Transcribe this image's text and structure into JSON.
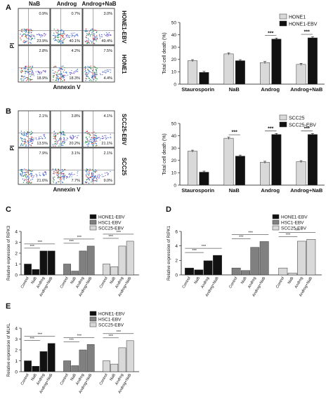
{
  "panels": [
    {
      "letter": "A",
      "flow": {
        "columns": [
          "NaB",
          "Androg",
          "Androg+NaB"
        ],
        "row_labels": [
          "HONE1-EBV",
          "HONE1"
        ],
        "xlabel": "Annexin V",
        "ylabel": "PI",
        "cells": [
          [
            {
              "ur": "0.9%",
              "lr": "23.9%"
            },
            {
              "ur": "0.7%",
              "lr": "40.1%"
            },
            {
              "ur": "3.0%",
              "lr": "49.4%"
            }
          ],
          [
            {
              "ur": "2.8%",
              "lr": "18.9%"
            },
            {
              "ur": "4.2%",
              "lr": "18.3%"
            },
            {
              "ur": "7.5%",
              "lr": "4.4%"
            }
          ]
        ]
      }
    },
    {
      "letter": "B",
      "flow": {
        "columns": [
          "",
          "",
          ""
        ],
        "row_labels": [
          "SCC25-EBV",
          "SCC25"
        ],
        "xlabel": "Annexin V",
        "ylabel": "PI",
        "cells": [
          [
            {
              "ur": "2.1%",
              "lr": "13.5%"
            },
            {
              "ur": "3.8%",
              "lr": "20.2%"
            },
            {
              "ur": "4.1%",
              "lr": "21.1%"
            }
          ],
          [
            {
              "ur": "7.9%",
              "lr": "21.6%"
            },
            {
              "ur": "3.1%",
              "lr": "7.7%"
            },
            {
              "ur": "2.1%",
              "lr": "9.0%"
            }
          ]
        ]
      }
    },
    {
      "letter": "C"
    },
    {
      "letter": "D"
    },
    {
      "letter": "E"
    }
  ],
  "chart_data": [
    {
      "type": "bar",
      "panel": "A",
      "categories": [
        "Staurosporin",
        "NaB",
        "Androg",
        "Androg+NaB"
      ],
      "series": [
        {
          "name": "HONE1",
          "values": [
            19,
            24.5,
            17.5,
            16
          ]
        },
        {
          "name": "HONE1-EBV",
          "values": [
            9.5,
            19,
            36.5,
            37.5
          ]
        }
      ],
      "xlabel": "",
      "ylabel": "Total cell death (%)",
      "ylim": [
        0,
        50
      ],
      "yticks": [
        0,
        10,
        20,
        30,
        40,
        50
      ],
      "significance": [
        {
          "group": 2,
          "label": "***"
        },
        {
          "group": 3,
          "label": "***"
        }
      ],
      "legend": "top-right"
    },
    {
      "type": "bar",
      "panel": "B",
      "categories": [
        "Staurosporin",
        "NaB",
        "Androg",
        "Androg+NaB"
      ],
      "series": [
        {
          "name": "SCC25",
          "values": [
            27.5,
            38,
            18.5,
            19
          ]
        },
        {
          "name": "SCC25-EBV",
          "values": [
            10.5,
            23.5,
            41,
            41
          ]
        }
      ],
      "xlabel": "",
      "ylabel": "Total cell death (%)",
      "ylim": [
        0,
        50
      ],
      "yticks": [
        0,
        10,
        20,
        30,
        40,
        50
      ],
      "significance": [
        {
          "group": 1,
          "label": "***"
        },
        {
          "group": 2,
          "label": "***"
        },
        {
          "group": 3,
          "label": "***"
        }
      ],
      "legend": "top-right"
    },
    {
      "type": "bar",
      "panel": "C",
      "series_names": [
        "HONE1-EBV",
        "HSC1-EBV",
        "SCC25-EBV"
      ],
      "series_colors": [
        "#111111",
        "#808080",
        "#d9d9d9"
      ],
      "categories": [
        "Control",
        "NaB",
        "Androg",
        "Androg+NaB"
      ],
      "values": [
        [
          1.0,
          0.5,
          2.2,
          2.2
        ],
        [
          1.0,
          0.35,
          2.2,
          2.65
        ],
        [
          1.0,
          0.75,
          2.65,
          3.1
        ]
      ],
      "xlabel": "",
      "ylabel": "Relative expression of RIPK3",
      "ylim": [
        0,
        4
      ],
      "yticks": [
        0,
        1,
        2,
        3,
        4
      ],
      "sig_label": "***",
      "legend": "top-right"
    },
    {
      "type": "bar",
      "panel": "D",
      "series_names": [
        "HONE1-EBV",
        "HSC1-EBV",
        "SCC25-EBV"
      ],
      "series_colors": [
        "#111111",
        "#808080",
        "#d9d9d9"
      ],
      "categories": [
        "Control",
        "NaB",
        "Androg",
        "Androg+NaB"
      ],
      "values": [
        [
          0.95,
          0.7,
          1.95,
          2.7
        ],
        [
          0.95,
          0.6,
          3.8,
          4.6
        ],
        [
          0.95,
          0.25,
          4.65,
          4.9
        ]
      ],
      "xlabel": "",
      "ylabel": "Relative expression of RIPK1",
      "ylim": [
        0,
        6
      ],
      "yticks": [
        0,
        2,
        4,
        6
      ],
      "sig_label": "***",
      "legend": "top-right"
    },
    {
      "type": "bar",
      "panel": "E",
      "series_names": [
        "HONE1-EBV",
        "HSC1-EBV",
        "SCC25-EBV"
      ],
      "series_colors": [
        "#111111",
        "#808080",
        "#d9d9d9"
      ],
      "categories": [
        "Control",
        "NaB",
        "Androg",
        "Androg+NaB"
      ],
      "values": [
        [
          1.0,
          0.5,
          1.85,
          2.6
        ],
        [
          1.0,
          0.55,
          2.0,
          2.5
        ],
        [
          1.0,
          0.7,
          2.2,
          2.85
        ]
      ],
      "xlabel": "",
      "ylabel": "Relative expression of MLKL",
      "ylim": [
        0,
        4
      ],
      "yticks": [
        0,
        1,
        2,
        3,
        4
      ],
      "sig_label": "***",
      "legend": "top-right"
    }
  ]
}
